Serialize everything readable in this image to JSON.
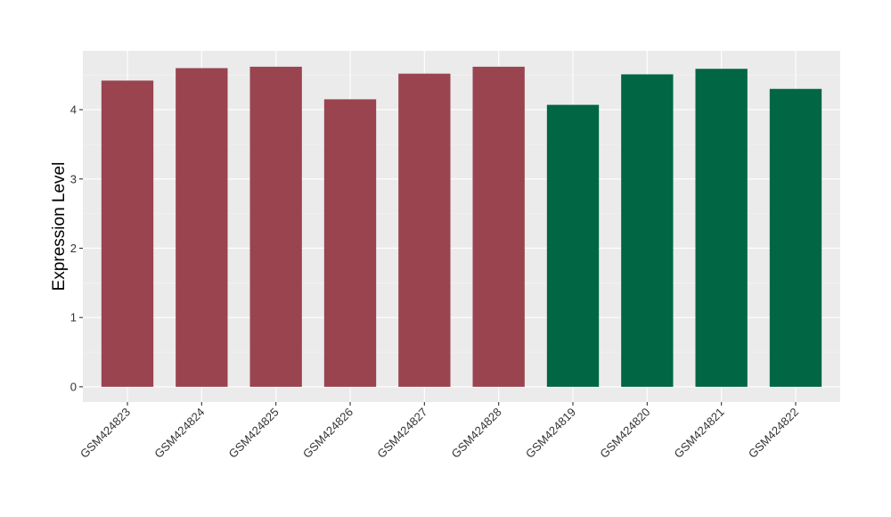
{
  "chart_data": {
    "type": "bar",
    "xlabel": "",
    "ylabel": "Expression Level",
    "ylim": [
      -0.22,
      4.85
    ],
    "yticks": [
      0,
      1,
      2,
      3,
      4
    ],
    "grid": true,
    "background": "#EBEBEB",
    "categories": [
      "GSM424823",
      "GSM424824",
      "GSM424825",
      "GSM424826",
      "GSM424827",
      "GSM424828",
      "GSM424819",
      "GSM424820",
      "GSM424821",
      "GSM424822"
    ],
    "values": [
      4.42,
      4.6,
      4.62,
      4.15,
      4.52,
      4.62,
      4.07,
      4.51,
      4.59,
      4.3
    ],
    "colors": [
      "#99444F",
      "#99444F",
      "#99444F",
      "#99444F",
      "#99444F",
      "#99444F",
      "#006644",
      "#006644",
      "#006644",
      "#006644"
    ]
  }
}
